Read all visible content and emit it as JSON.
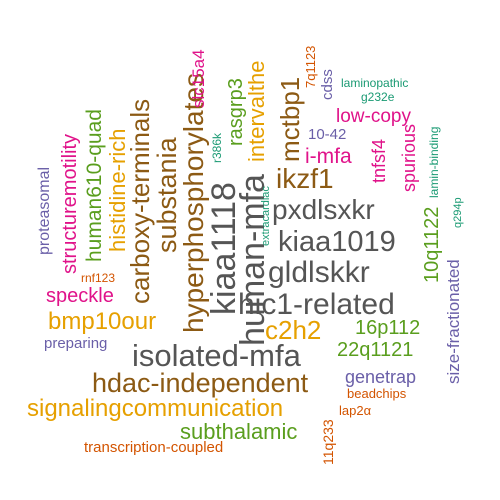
{
  "colors": {
    "gray": "#555555",
    "brown": "#8c5a14",
    "gold": "#e6a000",
    "green": "#5a9e1e",
    "magenta": "#e0138a",
    "purple": "#6a5fa8",
    "teal": "#1a9a73",
    "orange": "#d35400"
  },
  "words": [
    "isolated-mfa",
    "hic1-related",
    "gldlskkr",
    "kiaa1019",
    "pxdlsxkr",
    "kiaa1118",
    "human-mfa",
    "hyperphosphorylates",
    "hdac-independent",
    "carboxy-terminals",
    "substania",
    "signalingcommunication",
    "ikzf1",
    "c2h2",
    "bmp10our",
    "histidine-rich",
    "mctbp1",
    "intervalthe",
    "i-mfa",
    "subthalamic",
    "human610-quad",
    "structuremotility",
    "rasgrp3",
    "10q1122",
    "22q1121",
    "16p112",
    "low-copy",
    "speckle",
    "genetrap",
    "tnfsf4",
    "spurious",
    "slc15a4",
    "size-fractionated",
    "proteasomal",
    "preparing",
    "transcription-coupled",
    "7q1123",
    "cdss",
    "laminopathic",
    "g232e",
    "10-42",
    "r386k",
    "extracardiac",
    "lamin-binding",
    "q294p",
    "rnf123",
    "beadchips",
    "lap2α",
    "11q233"
  ]
}
